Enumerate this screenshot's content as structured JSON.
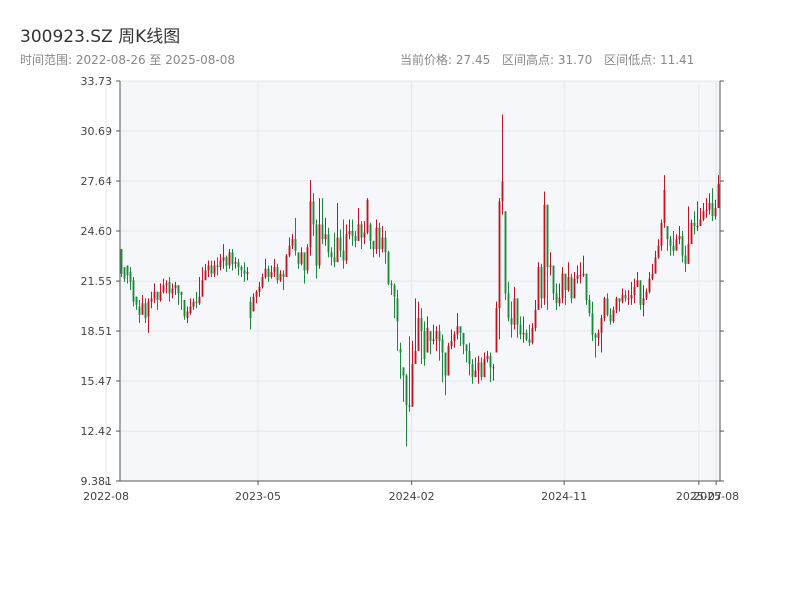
{
  "header": {
    "title": "300923.SZ 周K线图",
    "range": "时间范围: 2022-08-26 至 2025-08-08",
    "current_price": "当前价格: 27.45",
    "period_high": "区间高点: 31.70",
    "period_low": "区间低点: 11.41"
  },
  "colors": {
    "up": "#c0161f",
    "down": "#1a8a3a",
    "plot_bg": "#f5f7fa",
    "grid": "#e4e7ec",
    "axis": "#555555"
  },
  "chart_data": {
    "type": "candlestick",
    "title": "300923.SZ 周K线图",
    "xlabel": "",
    "ylabel": "",
    "ylim": [
      9.381,
      33.73
    ],
    "y_ticks": [
      "9.381",
      "12.42",
      "15.47",
      "18.51",
      "21.55",
      "24.60",
      "27.64",
      "30.69",
      "33.73"
    ],
    "x_ticks": [
      "2022-08",
      "2023-05",
      "2024-02",
      "2024-11",
      "2025-07",
      "2025-08"
    ],
    "x_tick_dates": [
      "2022-08-01",
      "2023-05-01",
      "2024-02-01",
      "2024-11-01",
      "2025-07-01",
      "2025-08-01"
    ],
    "x_range": [
      "2022-08-26",
      "2025-08-08"
    ],
    "grid": true,
    "close": [
      22.0,
      21.7,
      21.9,
      21.5,
      20.3,
      20.1,
      19.5,
      20.2,
      19.3,
      20.3,
      20.5,
      20.9,
      20.4,
      20.9,
      21.3,
      21.4,
      20.8,
      21.1,
      21.3,
      20.8,
      20.7,
      19.4,
      19.7,
      20.0,
      20.3,
      20.2,
      20.6,
      21.6,
      22.2,
      22.5,
      22.0,
      22.5,
      22.4,
      22.8,
      23.0,
      22.5,
      23.3,
      22.6,
      22.7,
      22.4,
      22.2,
      22.0,
      22.1,
      19.3,
      20.6,
      20.9,
      21.2,
      21.8,
      22.3,
      21.8,
      22.1,
      22.4,
      21.6,
      22.0,
      21.8,
      23.1,
      23.7,
      24.1,
      23.4,
      22.6,
      23.3,
      22.2,
      23.6,
      26.4,
      25.0,
      22.5,
      25.0,
      24.1,
      24.4,
      23.3,
      23.0,
      22.7,
      24.2,
      23.4,
      22.8,
      24.4,
      24.6,
      24.3,
      24.0,
      25.0,
      24.2,
      24.5,
      26.5,
      24.0,
      23.5,
      24.8,
      23.5,
      24.2,
      23.3,
      21.4,
      21.3,
      20.6,
      19.1,
      17.2,
      15.8,
      14.0,
      13.9,
      16.5,
      17.3,
      19.3,
      18.5,
      16.8,
      18.7,
      17.9,
      18.0,
      18.5,
      17.9,
      17.2,
      15.8,
      17.6,
      17.9,
      18.3,
      18.8,
      18.4,
      17.7,
      17.3,
      16.5,
      15.7,
      16.1,
      16.6,
      15.7,
      16.8,
      17.0,
      16.3,
      16.3,
      19.9,
      26.4,
      27.6,
      20.8,
      19.3,
      18.9,
      20.5,
      18.9,
      18.3,
      18.4,
      18.0,
      17.8,
      18.7,
      19.8,
      22.4,
      20.5,
      26.2,
      22.4,
      22.5,
      20.8,
      20.2,
      20.5,
      22.0,
      21.0,
      21.8,
      20.5,
      21.7,
      21.9,
      21.9,
      22.0,
      20.4,
      19.6,
      18.3,
      18.1,
      18.4,
      19.3,
      20.5,
      19.5,
      19.1,
      19.8,
      20.5,
      20.3,
      20.7,
      20.5,
      20.5,
      20.7,
      21.2,
      21.6,
      20.1,
      20.5,
      20.9,
      21.7,
      22.0,
      23.0,
      23.7,
      25.1,
      27.1,
      24.1,
      23.7,
      23.4,
      24.1,
      24.3,
      23.1,
      22.6,
      23.8,
      25.1,
      24.9,
      24.9,
      25.3,
      25.8,
      25.9,
      26.3,
      25.5,
      26.0,
      27.45
    ],
    "wicks": [
      [
        21.8,
        23.5
      ],
      [
        21.5,
        22.2
      ],
      [
        21.4,
        22.5
      ],
      [
        21.0,
        22.4
      ],
      [
        20.0,
        21.8
      ],
      [
        19.8,
        20.6
      ],
      [
        19.0,
        20.4
      ],
      [
        19.5,
        20.7
      ],
      [
        19.0,
        20.5
      ],
      [
        18.4,
        20.5
      ],
      [
        19.9,
        20.9
      ],
      [
        20.2,
        21.4
      ],
      [
        19.8,
        20.9
      ],
      [
        20.3,
        21.4
      ],
      [
        20.8,
        21.7
      ],
      [
        20.8,
        21.6
      ],
      [
        20.3,
        21.8
      ],
      [
        20.5,
        21.4
      ],
      [
        20.7,
        21.5
      ],
      [
        20.1,
        21.3
      ],
      [
        19.8,
        20.9
      ],
      [
        19.2,
        20.4
      ],
      [
        19.0,
        20.0
      ],
      [
        19.5,
        20.5
      ],
      [
        19.8,
        20.5
      ],
      [
        19.9,
        20.9
      ],
      [
        20.1,
        21.8
      ],
      [
        21.0,
        22.4
      ],
      [
        21.8,
        22.6
      ],
      [
        21.8,
        22.8
      ],
      [
        21.8,
        22.8
      ],
      [
        21.8,
        22.8
      ],
      [
        21.9,
        23.0
      ],
      [
        22.2,
        23.2
      ],
      [
        22.3,
        23.8
      ],
      [
        22.1,
        23.1
      ],
      [
        22.3,
        23.5
      ],
      [
        22.2,
        23.5
      ],
      [
        22.3,
        23.0
      ],
      [
        21.9,
        22.9
      ],
      [
        21.8,
        22.5
      ],
      [
        21.5,
        22.7
      ],
      [
        21.6,
        22.4
      ],
      [
        18.6,
        20.6
      ],
      [
        20.0,
        20.8
      ],
      [
        20.2,
        21.0
      ],
      [
        20.6,
        21.5
      ],
      [
        21.1,
        22.0
      ],
      [
        21.7,
        22.9
      ],
      [
        21.5,
        22.5
      ],
      [
        21.7,
        22.5
      ],
      [
        21.8,
        22.9
      ],
      [
        21.4,
        22.6
      ],
      [
        21.5,
        22.2
      ],
      [
        21.0,
        22.2
      ],
      [
        22.3,
        23.2
      ],
      [
        23.0,
        24.2
      ],
      [
        23.5,
        24.4
      ],
      [
        23.1,
        25.4
      ],
      [
        22.3,
        23.2
      ],
      [
        22.5,
        23.6
      ],
      [
        21.4,
        23.0
      ],
      [
        22.0,
        23.8
      ],
      [
        23.1,
        27.7
      ],
      [
        24.3,
        26.9
      ],
      [
        21.7,
        25.3
      ],
      [
        22.3,
        26.6
      ],
      [
        23.8,
        26.6
      ],
      [
        23.7,
        25.4
      ],
      [
        23.0,
        24.8
      ],
      [
        22.5,
        23.6
      ],
      [
        22.4,
        24.5
      ],
      [
        23.0,
        26.3
      ],
      [
        23.0,
        24.7
      ],
      [
        22.3,
        25.3
      ],
      [
        22.6,
        25.0
      ],
      [
        24.1,
        25.3
      ],
      [
        23.7,
        25.3
      ],
      [
        23.6,
        24.6
      ],
      [
        24.0,
        26.0
      ],
      [
        23.5,
        25.2
      ],
      [
        23.8,
        25.2
      ],
      [
        24.4,
        26.6
      ],
      [
        23.5,
        25.1
      ],
      [
        23.0,
        24.0
      ],
      [
        23.2,
        25.3
      ],
      [
        23.0,
        25.1
      ],
      [
        23.3,
        24.9
      ],
      [
        22.6,
        24.6
      ],
      [
        21.3,
        23.4
      ],
      [
        20.7,
        21.6
      ],
      [
        19.3,
        21.4
      ],
      [
        17.3,
        21.0
      ],
      [
        15.6,
        17.8
      ],
      [
        14.2,
        16.3
      ],
      [
        11.5,
        15.9
      ],
      [
        13.6,
        18.2
      ],
      [
        15.4,
        17.9
      ],
      [
        16.5,
        20.5
      ],
      [
        18.4,
        20.3
      ],
      [
        16.5,
        19.9
      ],
      [
        16.4,
        19.1
      ],
      [
        18.2,
        19.4
      ],
      [
        17.1,
        18.3
      ],
      [
        17.7,
        18.9
      ],
      [
        17.3,
        18.8
      ],
      [
        16.7,
        18.9
      ],
      [
        15.4,
        18.3
      ],
      [
        14.6,
        16.3
      ],
      [
        15.8,
        17.8
      ],
      [
        17.4,
        18.6
      ],
      [
        17.5,
        18.5
      ],
      [
        18.0,
        19.6
      ],
      [
        17.6,
        18.7
      ],
      [
        17.1,
        18.2
      ],
      [
        16.6,
        17.7
      ],
      [
        15.8,
        17.8
      ],
      [
        15.3,
        16.8
      ],
      [
        15.9,
        16.9
      ],
      [
        15.3,
        17.0
      ],
      [
        15.5,
        16.9
      ],
      [
        16.0,
        17.2
      ],
      [
        16.6,
        17.3
      ],
      [
        15.4,
        17.2
      ],
      [
        15.5,
        16.5
      ],
      [
        17.3,
        20.3
      ],
      [
        18.0,
        26.6
      ],
      [
        25.6,
        31.7
      ],
      [
        20.4,
        25.8
      ],
      [
        19.1,
        21.5
      ],
      [
        18.1,
        20.3
      ],
      [
        18.6,
        21.2
      ],
      [
        18.1,
        19.9
      ],
      [
        18.0,
        19.4
      ],
      [
        17.8,
        19.4
      ],
      [
        17.9,
        18.6
      ],
      [
        17.6,
        18.9
      ],
      [
        17.7,
        19.0
      ],
      [
        18.5,
        20.4
      ],
      [
        19.8,
        22.7
      ],
      [
        19.9,
        22.6
      ],
      [
        20.1,
        27.0
      ],
      [
        19.8,
        22.5
      ],
      [
        21.9,
        23.3
      ],
      [
        20.4,
        22.5
      ],
      [
        19.8,
        21.4
      ],
      [
        20.0,
        21.4
      ],
      [
        20.2,
        22.4
      ],
      [
        20.1,
        21.3
      ],
      [
        20.9,
        22.7
      ],
      [
        20.2,
        22.0
      ],
      [
        21.1,
        22.1
      ],
      [
        21.4,
        22.5
      ],
      [
        21.4,
        22.7
      ],
      [
        21.8,
        23.1
      ],
      [
        20.1,
        22.0
      ],
      [
        19.4,
        20.7
      ],
      [
        17.9,
        20.3
      ],
      [
        16.9,
        18.4
      ],
      [
        17.6,
        18.6
      ],
      [
        17.2,
        19.5
      ],
      [
        19.1,
        20.6
      ],
      [
        19.4,
        20.8
      ],
      [
        18.9,
        19.9
      ],
      [
        19.0,
        20.0
      ],
      [
        19.6,
        20.6
      ],
      [
        19.7,
        20.5
      ],
      [
        20.2,
        21.1
      ],
      [
        20.3,
        21.0
      ],
      [
        20.1,
        21.0
      ],
      [
        20.1,
        21.5
      ],
      [
        20.2,
        21.7
      ],
      [
        21.2,
        22.1
      ],
      [
        19.8,
        21.1
      ],
      [
        19.4,
        21.3
      ],
      [
        20.4,
        21.1
      ],
      [
        20.8,
        22.1
      ],
      [
        21.6,
        22.6
      ],
      [
        22.2,
        23.4
      ],
      [
        22.9,
        24.1
      ],
      [
        23.4,
        25.3
      ],
      [
        24.8,
        28.0
      ],
      [
        23.4,
        24.9
      ],
      [
        23.1,
        24.3
      ],
      [
        23.1,
        24.6
      ],
      [
        23.5,
        24.4
      ],
      [
        23.8,
        24.9
      ],
      [
        22.7,
        24.6
      ],
      [
        22.1,
        23.7
      ],
      [
        22.6,
        26.1
      ],
      [
        24.6,
        25.3
      ],
      [
        24.4,
        25.8
      ],
      [
        24.6,
        26.4
      ],
      [
        24.9,
        26.0
      ],
      [
        25.2,
        26.3
      ],
      [
        25.4,
        26.6
      ],
      [
        25.6,
        26.9
      ],
      [
        25.2,
        27.2
      ],
      [
        25.3,
        26.5
      ],
      [
        26.5,
        28.0
      ]
    ],
    "open": [
      23.5,
      22.4,
      22.5,
      22.1,
      21.6,
      20.6,
      20.0,
      19.5,
      20.2,
      19.4,
      20.3,
      20.5,
      20.9,
      20.4,
      20.9,
      21.3,
      21.5,
      20.8,
      21.1,
      21.3,
      20.9,
      20.4,
      19.3,
      19.6,
      20.0,
      20.3,
      20.2,
      20.6,
      21.6,
      22.2,
      22.5,
      22.0,
      22.5,
      22.4,
      22.8,
      23.0,
      22.5,
      23.3,
      22.6,
      22.7,
      22.4,
      22.2,
      22.0,
      20.3,
      19.7,
      20.6,
      20.9,
      21.2,
      21.8,
      22.3,
      21.8,
      22.1,
      22.4,
      21.6,
      22.0,
      21.8,
      23.1,
      23.7,
      24.1,
      23.3,
      22.6,
      23.3,
      22.2,
      23.6,
      26.4,
      25.0,
      22.5,
      25.0,
      24.1,
      24.4,
      23.3,
      23.0,
      22.7,
      24.2,
      23.4,
      22.8,
      24.4,
      24.6,
      24.3,
      24.0,
      25.0,
      24.2,
      24.5,
      25.0,
      24.0,
      23.5,
      24.8,
      23.5,
      24.2,
      23.3,
      21.4,
      21.3,
      20.5,
      17.4,
      16.3,
      15.8,
      14.0,
      13.9,
      16.5,
      17.3,
      19.3,
      18.5,
      17.2,
      18.5,
      17.9,
      18.0,
      18.5,
      18.0,
      17.2,
      15.8,
      17.6,
      17.9,
      18.3,
      18.8,
      18.4,
      17.7,
      17.3,
      16.5,
      15.7,
      16.1,
      16.6,
      15.7,
      16.8,
      17.0,
      16.3,
      17.2,
      19.9,
      26.4,
      25.8,
      20.8,
      19.3,
      18.9,
      20.5,
      18.9,
      18.3,
      18.4,
      18.0,
      17.8,
      18.7,
      19.8,
      22.4,
      20.5,
      26.2,
      22.4,
      22.5,
      20.8,
      20.2,
      20.5,
      22.0,
      21.0,
      21.8,
      20.5,
      21.7,
      21.9,
      21.9,
      22.0,
      20.4,
      19.6,
      18.3,
      18.1,
      18.4,
      19.3,
      20.5,
      19.5,
      19.1,
      19.8,
      20.5,
      20.3,
      20.7,
      20.5,
      20.5,
      20.7,
      21.2,
      21.6,
      20.1,
      20.5,
      20.9,
      21.7,
      22.0,
      23.0,
      23.7,
      25.1,
      24.9,
      24.1,
      23.7,
      23.4,
      24.1,
      24.3,
      23.1,
      22.6,
      23.8,
      25.1,
      24.9,
      24.9,
      25.3,
      25.8,
      25.9,
      26.3,
      25.5,
      26.0
    ]
  }
}
